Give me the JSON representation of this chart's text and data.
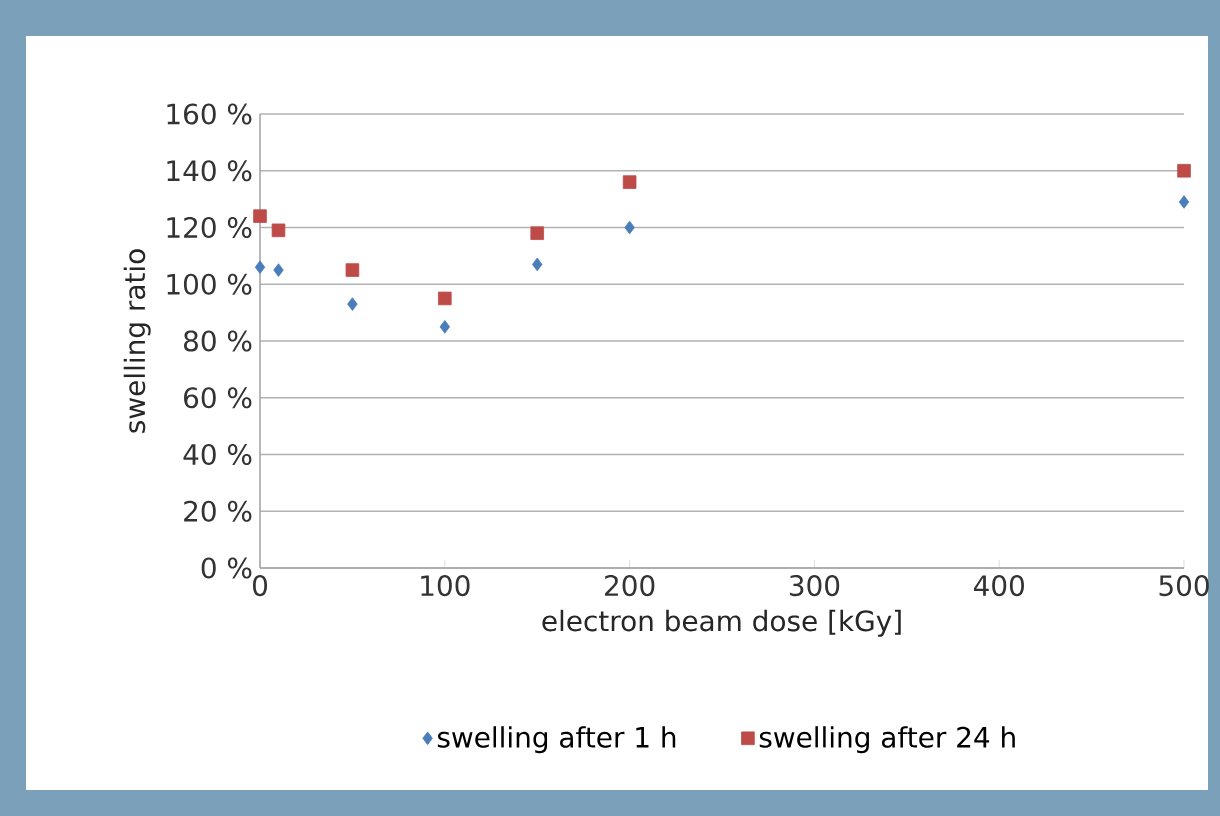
{
  "chart_data": {
    "type": "scatter",
    "xlabel": "electron beam dose [kGy]",
    "ylabel": "swelling ratio",
    "x": [
      0,
      10,
      50,
      100,
      150,
      200,
      500
    ],
    "series": [
      {
        "name": "swelling after 1 h",
        "color": "#4a7ebb",
        "marker": "diamond",
        "values": [
          106,
          105,
          93,
          85,
          107,
          120,
          129
        ]
      },
      {
        "name": "swelling after 24 h",
        "color": "#be4b48",
        "marker": "square",
        "values": [
          124,
          119,
          105,
          95,
          118,
          136,
          140
        ]
      }
    ],
    "xlim": [
      0,
      500
    ],
    "xticks": [
      0,
      100,
      200,
      300,
      400,
      500
    ],
    "ylim": [
      0,
      160
    ],
    "yticks": [
      {
        "value": 0,
        "label": "0 %"
      },
      {
        "value": 20,
        "label": "20 %"
      },
      {
        "value": 40,
        "label": "40 %"
      },
      {
        "value": 60,
        "label": "60 %"
      },
      {
        "value": 80,
        "label": "80 %"
      },
      {
        "value": 100,
        "label": "100 %"
      },
      {
        "value": 120,
        "label": "120 %"
      },
      {
        "value": 140,
        "label": "140 %"
      },
      {
        "value": 160,
        "label": "160 %"
      }
    ],
    "grid": "y",
    "legend": "bottom"
  }
}
